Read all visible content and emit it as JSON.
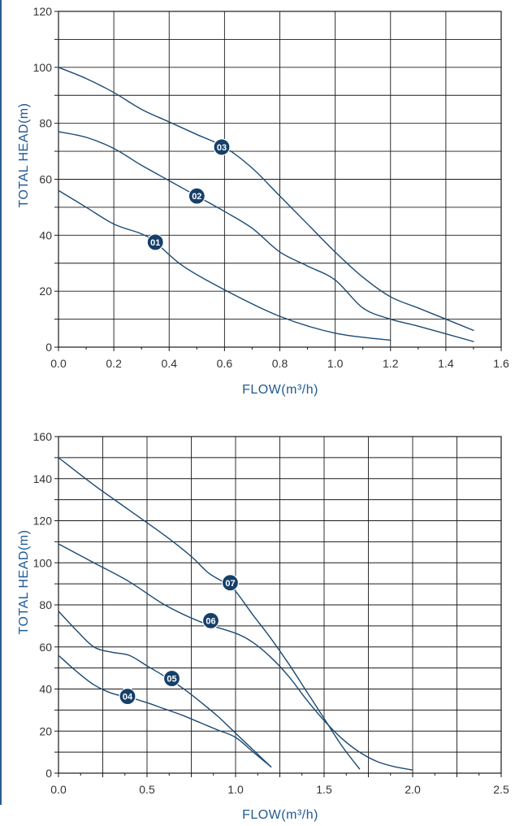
{
  "colors": {
    "grid": "#1a1a1a",
    "curve": "#1b4a73",
    "badge": "#16406a",
    "label": "#1f5a96"
  },
  "chart_data": [
    {
      "type": "line",
      "xlabel": "FLOW(m³/h)",
      "ylabel": "TOTAL HEAD(m)",
      "xlim": [
        0,
        1.6
      ],
      "ylim": [
        0,
        120
      ],
      "xticks": [
        "0.0",
        "0.2",
        "0.4",
        "0.6",
        "0.8",
        "1.0",
        "1.2",
        "1.4",
        "1.6"
      ],
      "yticks": [
        "0",
        "20",
        "40",
        "60",
        "80",
        "100",
        "120"
      ],
      "grid": true,
      "series": [
        {
          "name": "01",
          "x": [
            0,
            0.1,
            0.2,
            0.3,
            0.35,
            0.45,
            0.6,
            0.8,
            1.0,
            1.2
          ],
          "y": [
            56,
            50,
            44,
            40.5,
            37.5,
            29,
            20.5,
            11,
            5,
            2.5
          ],
          "badge": [
            0.35,
            37.5
          ]
        },
        {
          "name": "02",
          "x": [
            0,
            0.1,
            0.2,
            0.3,
            0.4,
            0.5,
            0.6,
            0.7,
            0.8,
            0.9,
            1.0,
            1.1,
            1.2,
            1.3,
            1.5
          ],
          "y": [
            77,
            75,
            71,
            65,
            59.5,
            54,
            48.5,
            42.5,
            34,
            29,
            24,
            14,
            10,
            7.5,
            2
          ],
          "badge": [
            0.5,
            54
          ]
        },
        {
          "name": "03",
          "x": [
            0,
            0.1,
            0.2,
            0.3,
            0.4,
            0.5,
            0.6,
            0.7,
            0.8,
            0.9,
            1.0,
            1.1,
            1.2,
            1.3,
            1.4,
            1.5
          ],
          "y": [
            100,
            96,
            91,
            85,
            80.5,
            76,
            71.5,
            64,
            54,
            44,
            34,
            25,
            18,
            14,
            10,
            6
          ],
          "badge": [
            0.59,
            71.5
          ]
        }
      ]
    },
    {
      "type": "line",
      "xlabel": "FLOW(m³/h)",
      "ylabel": "TOTAL HEAD(m)",
      "xlim": [
        0,
        2.5
      ],
      "ylim": [
        0,
        160
      ],
      "xticks": [
        "0.0",
        "0.5",
        "1.0",
        "1.5",
        "2.0",
        "2.5"
      ],
      "yticks": [
        "0",
        "20",
        "40",
        "60",
        "80",
        "100",
        "120",
        "140",
        "160"
      ],
      "grid": true,
      "series": [
        {
          "name": "04",
          "x": [
            0,
            0.1,
            0.2,
            0.3,
            0.4,
            0.5,
            0.6,
            0.7,
            0.8,
            0.9,
            1.0,
            1.1,
            1.2
          ],
          "y": [
            56,
            48.5,
            42,
            38,
            36,
            33.5,
            30.5,
            27.5,
            24,
            20.5,
            17,
            10,
            3
          ],
          "badge": [
            0.39,
            36.5
          ]
        },
        {
          "name": "05",
          "x": [
            0,
            0.1,
            0.2,
            0.3,
            0.4,
            0.5,
            0.6,
            0.7,
            0.8,
            0.9,
            1.0,
            1.1,
            1.2
          ],
          "y": [
            77,
            68,
            60,
            57.5,
            56,
            51,
            46,
            40.5,
            34,
            27,
            19,
            11,
            3
          ],
          "badge": [
            0.64,
            45
          ]
        },
        {
          "name": "06",
          "x": [
            0,
            0.2,
            0.4,
            0.6,
            0.8,
            1.0,
            1.1,
            1.2,
            1.3,
            1.4,
            1.5,
            1.6,
            1.7,
            1.8,
            1.9,
            2.0
          ],
          "y": [
            109,
            100,
            91,
            80,
            72,
            66.5,
            62,
            55,
            46,
            35,
            25,
            16.5,
            10,
            5.5,
            3,
            1.5
          ],
          "badge": [
            0.86,
            72.5
          ]
        },
        {
          "name": "07",
          "x": [
            0,
            0.2,
            0.4,
            0.6,
            0.75,
            0.85,
            0.95,
            1.0,
            1.1,
            1.2,
            1.3,
            1.4,
            1.5,
            1.6,
            1.7
          ],
          "y": [
            150,
            137,
            125,
            113,
            103,
            95,
            90,
            86.5,
            75,
            64,
            52,
            39,
            26,
            13,
            2
          ],
          "badge": [
            0.97,
            90.5
          ]
        }
      ]
    }
  ]
}
